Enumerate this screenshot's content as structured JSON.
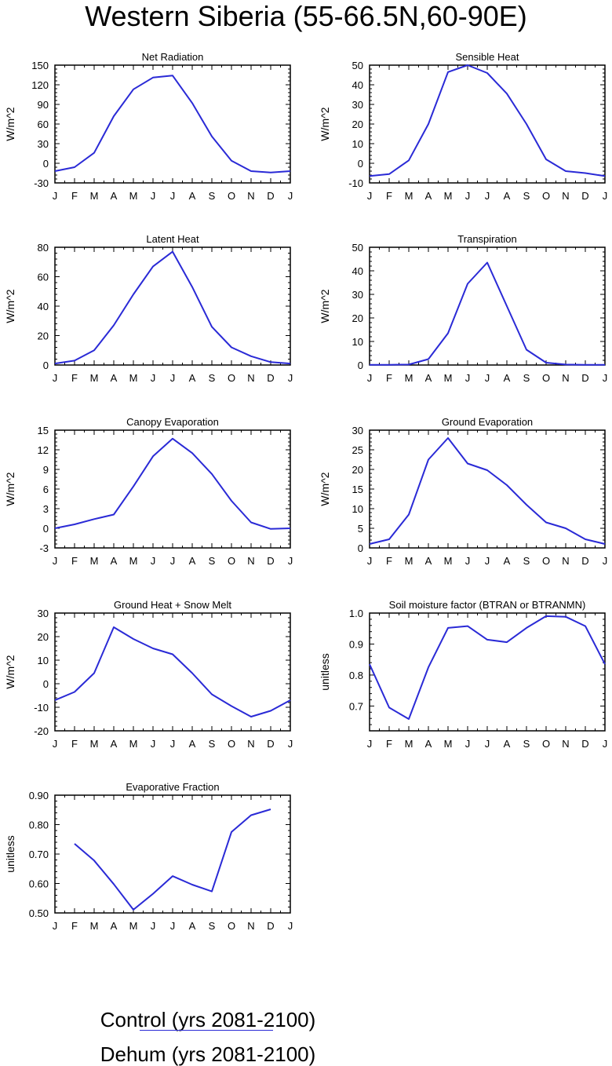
{
  "title": "Western Siberia (55-66.5N,60-90E)",
  "months": [
    "J",
    "F",
    "M",
    "A",
    "M",
    "J",
    "J",
    "A",
    "S",
    "O",
    "N",
    "D",
    "J"
  ],
  "colors": {
    "control": "#2a2ad6",
    "dehum": "#ff2a1a",
    "axis": "#000000"
  },
  "chart_data": [
    {
      "type": "line",
      "title": "Net Radiation",
      "ylabel": "W/m^2",
      "ylim": [
        -30,
        150
      ],
      "yticks": [
        -30,
        0,
        30,
        60,
        90,
        120,
        150
      ],
      "ytick_labels": [
        "-30",
        "0",
        "30",
        "60",
        "90",
        "120",
        "150"
      ],
      "x": [
        1,
        2,
        3,
        4,
        5,
        6,
        7,
        8,
        9,
        10,
        11,
        12,
        13
      ],
      "series": [
        {
          "name": "Control (yrs 2081-2100)",
          "values": [
            -12,
            -6,
            16,
            72,
            113,
            131,
            134,
            92,
            41,
            4,
            -12,
            -14,
            -12
          ]
        }
      ]
    },
    {
      "type": "line",
      "title": "Sensible Heat",
      "ylabel": "W/m^2",
      "ylim": [
        -10,
        50
      ],
      "yticks": [
        -10,
        0,
        10,
        20,
        30,
        40,
        50
      ],
      "ytick_labels": [
        "-10",
        "0",
        "10",
        "20",
        "30",
        "40",
        "50"
      ],
      "x": [
        1,
        2,
        3,
        4,
        5,
        6,
        7,
        8,
        9,
        10,
        11,
        12,
        13
      ],
      "series": [
        {
          "name": "Control (yrs 2081-2100)",
          "values": [
            -6.5,
            -5.5,
            1.5,
            20,
            46.5,
            50,
            46,
            35.5,
            20,
            2,
            -4,
            -5,
            -6.5
          ]
        }
      ]
    },
    {
      "type": "line",
      "title": "Latent Heat",
      "ylabel": "W/m^2",
      "ylim": [
        0,
        80
      ],
      "yticks": [
        0,
        20,
        40,
        60,
        80
      ],
      "ytick_labels": [
        "0",
        "20",
        "40",
        "60",
        "80"
      ],
      "x": [
        1,
        2,
        3,
        4,
        5,
        6,
        7,
        8,
        9,
        10,
        11,
        12,
        13
      ],
      "series": [
        {
          "name": "Control (yrs 2081-2100)",
          "values": [
            1,
            3,
            10,
            27,
            48,
            67,
            77,
            53,
            26,
            12,
            6,
            2,
            1
          ]
        }
      ]
    },
    {
      "type": "line",
      "title": "Transpiration",
      "ylabel": "W/m^2",
      "ylim": [
        0,
        50
      ],
      "yticks": [
        0,
        10,
        20,
        30,
        40,
        50
      ],
      "ytick_labels": [
        "0",
        "10",
        "20",
        "30",
        "40",
        "50"
      ],
      "x": [
        1,
        2,
        3,
        4,
        5,
        6,
        7,
        8,
        9,
        10,
        11,
        12,
        13
      ],
      "series": [
        {
          "name": "Control (yrs 2081-2100)",
          "values": [
            0.1,
            0.1,
            0.2,
            2.5,
            13.5,
            34.5,
            43.5,
            25,
            6.5,
            1,
            0.2,
            0.1,
            0.1
          ]
        }
      ]
    },
    {
      "type": "line",
      "title": "Canopy Evaporation",
      "ylabel": "W/m^2",
      "ylim": [
        -3,
        15
      ],
      "yticks": [
        -3,
        0,
        3,
        6,
        9,
        12,
        15
      ],
      "ytick_labels": [
        "-3",
        "0",
        "3",
        "6",
        "9",
        "12",
        "15"
      ],
      "x": [
        1,
        2,
        3,
        4,
        5,
        6,
        7,
        8,
        9,
        10,
        11,
        12,
        13
      ],
      "series": [
        {
          "name": "Control (yrs 2081-2100)",
          "values": [
            0,
            0.6,
            1.4,
            2.1,
            6.4,
            11,
            13.7,
            11.5,
            8.3,
            4.2,
            0.9,
            -0.1,
            0
          ]
        }
      ]
    },
    {
      "type": "line",
      "title": "Ground Evaporation",
      "ylabel": "W/m^2",
      "ylim": [
        0,
        30
      ],
      "yticks": [
        0,
        5,
        10,
        15,
        20,
        25,
        30
      ],
      "ytick_labels": [
        "0",
        "5",
        "10",
        "15",
        "20",
        "25",
        "30"
      ],
      "x": [
        1,
        2,
        3,
        4,
        5,
        6,
        7,
        8,
        9,
        10,
        11,
        12,
        13
      ],
      "series": [
        {
          "name": "Control (yrs 2081-2100)",
          "values": [
            1,
            2.2,
            8.5,
            22.5,
            28,
            21.5,
            19.8,
            16,
            11,
            6.5,
            5,
            2.2,
            1
          ]
        }
      ]
    },
    {
      "type": "line",
      "title": "Ground Heat + Snow Melt",
      "ylabel": "W/m^2",
      "ylim": [
        -20,
        30
      ],
      "yticks": [
        -20,
        -10,
        0,
        10,
        20,
        30
      ],
      "ytick_labels": [
        "-20",
        "-10",
        "0",
        "10",
        "20",
        "30"
      ],
      "x": [
        1,
        2,
        3,
        4,
        5,
        6,
        7,
        8,
        9,
        10,
        11,
        12,
        13
      ],
      "series": [
        {
          "name": "Control (yrs 2081-2100)",
          "values": [
            -7,
            -3.5,
            4.5,
            24,
            19,
            15,
            12.5,
            4.5,
            -4.5,
            -9.5,
            -14,
            -11.5,
            -7
          ]
        }
      ]
    },
    {
      "type": "line",
      "title": "Soil moisture factor (BTRAN or BTRANMN)",
      "ylabel": "unitless",
      "ylim": [
        0.62,
        1.0
      ],
      "yticks": [
        0.7,
        0.8,
        0.9,
        1.0
      ],
      "ytick_labels": [
        "0.7",
        "0.8",
        "0.9",
        "1.0"
      ],
      "x": [
        1,
        2,
        3,
        4,
        5,
        6,
        7,
        8,
        9,
        10,
        11,
        12,
        13
      ],
      "series": [
        {
          "name": "Control (yrs 2081-2100)",
          "values": [
            0.835,
            0.695,
            0.658,
            0.825,
            0.952,
            0.958,
            0.914,
            0.906,
            0.952,
            0.99,
            0.988,
            0.958,
            0.835
          ]
        }
      ]
    },
    {
      "type": "line",
      "title": "Evaporative Fraction",
      "ylabel": "unitless",
      "ylim": [
        0.5,
        0.9
      ],
      "yticks": [
        0.5,
        0.6,
        0.7,
        0.8,
        0.9
      ],
      "ytick_labels": [
        "0.50",
        "0.60",
        "0.70",
        "0.80",
        "0.90"
      ],
      "x": [
        2,
        3,
        4,
        5,
        6,
        7,
        8,
        9,
        10,
        11,
        12
      ],
      "series": [
        {
          "name": "Control (yrs 2081-2100)",
          "values": [
            0.735,
            0.678,
            0.598,
            0.511,
            0.565,
            0.625,
            0.596,
            0.573,
            0.775,
            0.832,
            0.852
          ]
        }
      ]
    }
  ],
  "legend": {
    "control_label": "Control (yrs 2081-2100)",
    "dehum_label": "Dehum (yrs 2081-2100)"
  }
}
